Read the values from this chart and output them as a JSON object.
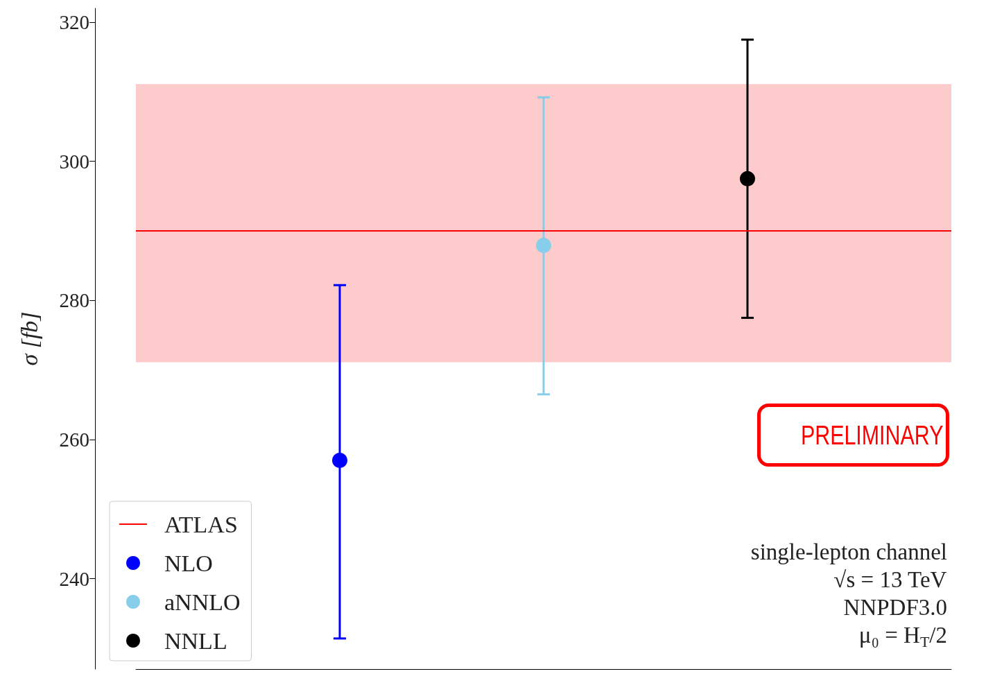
{
  "chart_data": {
    "type": "scatter",
    "ylabel": "σ [fb]",
    "categories": [
      null,
      null,
      null,
      null,
      null
    ],
    "ylim": [
      227,
      322
    ],
    "yticks": [
      240,
      260,
      280,
      300,
      320
    ],
    "tick_labels": "y",
    "grid": false,
    "legend": "bottom left",
    "marker": "circle",
    "series": [
      {
        "name": "NLO",
        "color": "#0000ff",
        "values": [
          null,
          257.0,
          null,
          null,
          null
        ],
        "errors": [
          null,
          [
            231.4,
            282.2
          ],
          null,
          null,
          null
        ]
      },
      {
        "name": "aNNLO",
        "color": "#87ceeb",
        "values": [
          null,
          null,
          287.9,
          null,
          null
        ],
        "errors": [
          null,
          null,
          [
            266.5,
            309.2
          ],
          null,
          null
        ]
      },
      {
        "name": "NNLL",
        "color": "#000000",
        "values": [
          null,
          null,
          null,
          297.5,
          null
        ],
        "errors": [
          null,
          null,
          null,
          [
            277.5,
            317.5
          ],
          null
        ]
      }
    ],
    "ref_lines": [
      {
        "axis": "y",
        "value": 290.0,
        "label": "ATLAS",
        "color": "#ff0000"
      }
    ],
    "bands": [
      {
        "axis": "y",
        "from": 271.1,
        "to": 311.1,
        "color": "#fdcbcb"
      }
    ],
    "annotations": [
      "PRELIMINARY",
      "single-lepton channel",
      "√s = 13 TeV",
      "NNPDF3.0",
      "μ₀ = H$_{T}$/2"
    ]
  }
}
